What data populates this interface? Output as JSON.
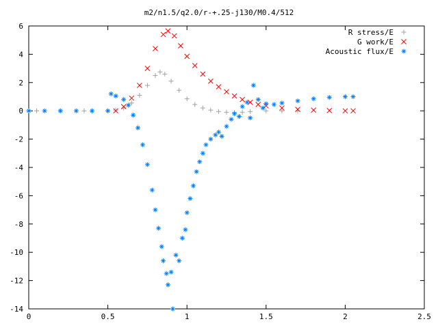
{
  "chart_data": {
    "type": "scatter",
    "title": "m2/n1.5/q2.0/r-+.25-j130/M0.4/512",
    "xlabel": "",
    "ylabel": "",
    "xlim": [
      0,
      2.5
    ],
    "ylim": [
      -14,
      6
    ],
    "x_ticks": [
      "0",
      "0.5",
      "1",
      "1.5",
      "2",
      "2.5"
    ],
    "y_ticks": [
      "6",
      "4",
      "2",
      "0",
      "-2",
      "-4",
      "-6",
      "-8",
      "-10",
      "-12",
      "-14"
    ],
    "grid": false,
    "legend_placement": "top-right",
    "series": [
      {
        "name": "R stress/E",
        "marker": "+",
        "color": "#a0a0a0",
        "points": [
          [
            0.05,
            0
          ],
          [
            0.2,
            0
          ],
          [
            0.35,
            0
          ],
          [
            0.5,
            0
          ],
          [
            0.55,
            0.05
          ],
          [
            0.6,
            0.2
          ],
          [
            0.65,
            0.55
          ],
          [
            0.7,
            1.1
          ],
          [
            0.75,
            1.8
          ],
          [
            0.8,
            2.5
          ],
          [
            0.83,
            2.75
          ],
          [
            0.86,
            2.6
          ],
          [
            0.9,
            2.1
          ],
          [
            0.95,
            1.45
          ],
          [
            1.0,
            0.85
          ],
          [
            1.05,
            0.45
          ],
          [
            1.1,
            0.2
          ],
          [
            1.15,
            0.05
          ],
          [
            1.2,
            -0.05
          ],
          [
            1.25,
            -0.1
          ],
          [
            1.3,
            -0.12
          ],
          [
            1.35,
            -0.1
          ],
          [
            1.4,
            -0.05
          ],
          [
            1.5,
            0
          ],
          [
            1.6,
            0
          ],
          [
            1.7,
            0
          ]
        ]
      },
      {
        "name": "G work/E",
        "marker": "x",
        "color": "#ff0000",
        "points": [
          [
            0.55,
            0
          ],
          [
            0.6,
            0.3
          ],
          [
            0.65,
            0.9
          ],
          [
            0.7,
            1.8
          ],
          [
            0.75,
            3.0
          ],
          [
            0.8,
            4.4
          ],
          [
            0.85,
            5.4
          ],
          [
            0.88,
            5.65
          ],
          [
            0.92,
            5.3
          ],
          [
            0.96,
            4.6
          ],
          [
            1.0,
            3.85
          ],
          [
            1.05,
            3.2
          ],
          [
            1.1,
            2.6
          ],
          [
            1.15,
            2.1
          ],
          [
            1.2,
            1.7
          ],
          [
            1.25,
            1.35
          ],
          [
            1.3,
            1.05
          ],
          [
            1.35,
            0.8
          ],
          [
            1.4,
            0.6
          ],
          [
            1.45,
            0.45
          ],
          [
            1.5,
            0.35
          ],
          [
            1.6,
            0.2
          ],
          [
            1.7,
            0.1
          ],
          [
            1.8,
            0.05
          ],
          [
            1.9,
            0.02
          ],
          [
            2.0,
            0
          ],
          [
            2.05,
            0
          ]
        ]
      },
      {
        "name": "Acoustic flux/E",
        "marker": "*",
        "color": "#0080ff",
        "points": [
          [
            0.0,
            0
          ],
          [
            0.1,
            0
          ],
          [
            0.2,
            0
          ],
          [
            0.3,
            0
          ],
          [
            0.4,
            0
          ],
          [
            0.5,
            0
          ],
          [
            0.52,
            1.2
          ],
          [
            0.55,
            1.05
          ],
          [
            0.6,
            0.8
          ],
          [
            0.63,
            0.4
          ],
          [
            0.66,
            -0.3
          ],
          [
            0.69,
            -1.2
          ],
          [
            0.72,
            -2.4
          ],
          [
            0.75,
            -3.8
          ],
          [
            0.78,
            -5.6
          ],
          [
            0.8,
            -7.0
          ],
          [
            0.82,
            -8.3
          ],
          [
            0.84,
            -9.6
          ],
          [
            0.85,
            -10.6
          ],
          [
            0.87,
            -11.5
          ],
          [
            0.88,
            -12.3
          ],
          [
            0.9,
            -11.4
          ],
          [
            0.91,
            -14.0
          ],
          [
            0.93,
            -10.2
          ],
          [
            0.95,
            -10.6
          ],
          [
            0.97,
            -9.0
          ],
          [
            0.99,
            -8.4
          ],
          [
            1.0,
            -7.2
          ],
          [
            1.02,
            -6.2
          ],
          [
            1.04,
            -5.3
          ],
          [
            1.06,
            -4.3
          ],
          [
            1.08,
            -3.6
          ],
          [
            1.1,
            -3.0
          ],
          [
            1.12,
            -2.4
          ],
          [
            1.15,
            -2.0
          ],
          [
            1.18,
            -1.7
          ],
          [
            1.2,
            -1.5
          ],
          [
            1.22,
            -1.8
          ],
          [
            1.25,
            -1.1
          ],
          [
            1.28,
            -0.6
          ],
          [
            1.3,
            -0.2
          ],
          [
            1.33,
            -0.4
          ],
          [
            1.35,
            0.3
          ],
          [
            1.38,
            0.6
          ],
          [
            1.4,
            -0.5
          ],
          [
            1.42,
            1.8
          ],
          [
            1.45,
            0.8
          ],
          [
            1.48,
            0.2
          ],
          [
            1.5,
            0.5
          ],
          [
            1.55,
            0.45
          ],
          [
            1.6,
            0.55
          ],
          [
            1.7,
            0.7
          ],
          [
            1.8,
            0.85
          ],
          [
            1.9,
            0.95
          ],
          [
            2.0,
            1.0
          ],
          [
            2.05,
            1.0
          ]
        ]
      }
    ]
  }
}
